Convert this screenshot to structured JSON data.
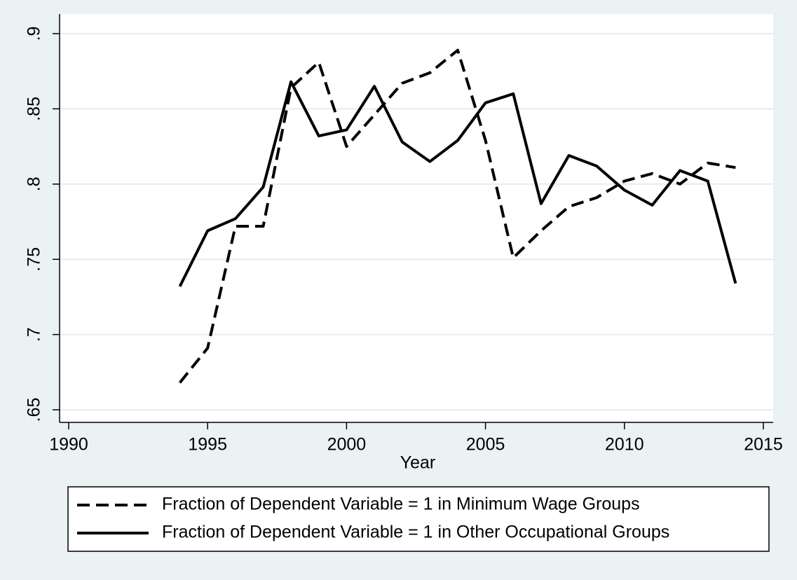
{
  "chart_data": {
    "type": "line",
    "x_label": "Year",
    "x": [
      1994,
      1995,
      1996,
      1997,
      1998,
      1999,
      2000,
      2001,
      2002,
      2003,
      2004,
      2005,
      2006,
      2007,
      2008,
      2009,
      2010,
      2011,
      2012,
      2013,
      2014
    ],
    "series": [
      {
        "name": "Fraction of Dependent Variable = 1 in Minimum Wage Groups",
        "color": "#000000",
        "dash": true,
        "values": [
          0.668,
          0.691,
          0.772,
          0.772,
          0.864,
          0.881,
          0.825,
          0.846,
          0.867,
          0.874,
          0.889,
          0.829,
          0.751,
          0.769,
          0.785,
          0.791,
          0.802,
          0.807,
          0.8,
          0.814,
          0.811
        ]
      },
      {
        "name": "Fraction of Dependent Variable = 1 in Other Occupational Groups",
        "color": "#000000",
        "dash": false,
        "values": [
          0.732,
          0.769,
          0.777,
          0.798,
          0.868,
          0.832,
          0.836,
          0.865,
          0.828,
          0.815,
          0.829,
          0.854,
          0.86,
          0.787,
          0.819,
          0.812,
          0.796,
          0.786,
          0.809,
          0.802,
          0.734
        ]
      }
    ],
    "xlim": [
      1990,
      2015
    ],
    "xticks": [
      1990,
      1995,
      2000,
      2005,
      2010,
      2015
    ],
    "ylim": [
      0.65,
      0.9
    ],
    "yticks": [
      {
        "value": 0.65,
        "label": ".65"
      },
      {
        "value": 0.7,
        "label": ".7"
      },
      {
        "value": 0.75,
        "label": ".75"
      },
      {
        "value": 0.8,
        "label": ".8"
      },
      {
        "value": 0.85,
        "label": ".85"
      },
      {
        "value": 0.9,
        "label": ".9"
      }
    ],
    "grid": true
  }
}
